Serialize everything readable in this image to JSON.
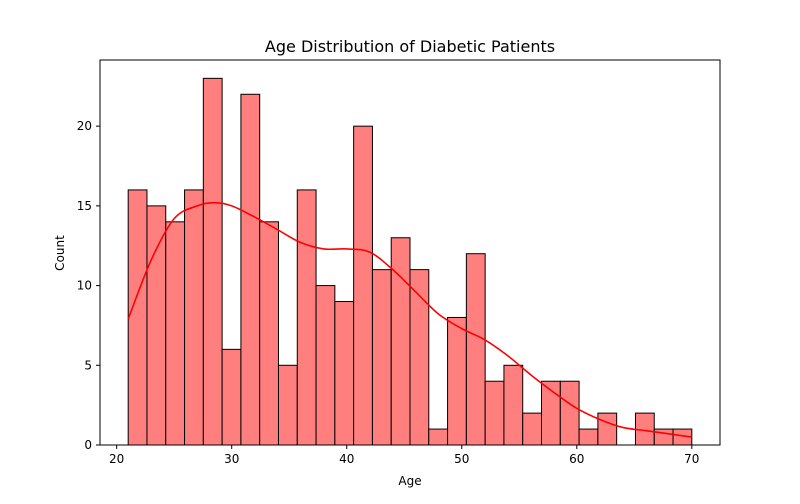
{
  "chart_data": {
    "type": "bar",
    "title": "Age Distribution of Diabetic Patients",
    "xlabel": "Age",
    "ylabel": "Count",
    "xlim": [
      18.55,
      72.45
    ],
    "ylim": [
      0,
      24.15
    ],
    "xticks": [
      20,
      30,
      40,
      50,
      60,
      70
    ],
    "yticks": [
      0,
      5,
      10,
      15,
      20
    ],
    "bins": {
      "start": 21,
      "end": 70,
      "count": 30,
      "counts": [
        16,
        15,
        14,
        16,
        23,
        6,
        22,
        14,
        5,
        16,
        10,
        9,
        20,
        11,
        13,
        11,
        1,
        8,
        12,
        4,
        5,
        2,
        4,
        4,
        1,
        2,
        0,
        2,
        1,
        1
      ]
    },
    "kde": {
      "x": [
        21,
        23,
        25,
        27,
        28.5,
        30,
        32,
        34,
        36,
        38,
        40,
        42,
        44,
        46,
        48,
        50,
        52,
        54,
        56,
        58,
        60,
        62,
        64,
        66,
        68,
        70
      ],
      "y": [
        7.9,
        11.6,
        14.2,
        15.0,
        15.2,
        15.0,
        14.3,
        13.5,
        12.7,
        12.3,
        12.3,
        12.1,
        11.0,
        9.6,
        8.2,
        7.3,
        6.6,
        5.6,
        4.4,
        3.3,
        2.3,
        1.6,
        1.1,
        0.9,
        0.7,
        0.5
      ]
    },
    "colors": {
      "bar_fill": "#ff7f7f",
      "bar_edge": "#000000",
      "kde_line": "#ff0000"
    },
    "grid": false,
    "legend": "none"
  }
}
